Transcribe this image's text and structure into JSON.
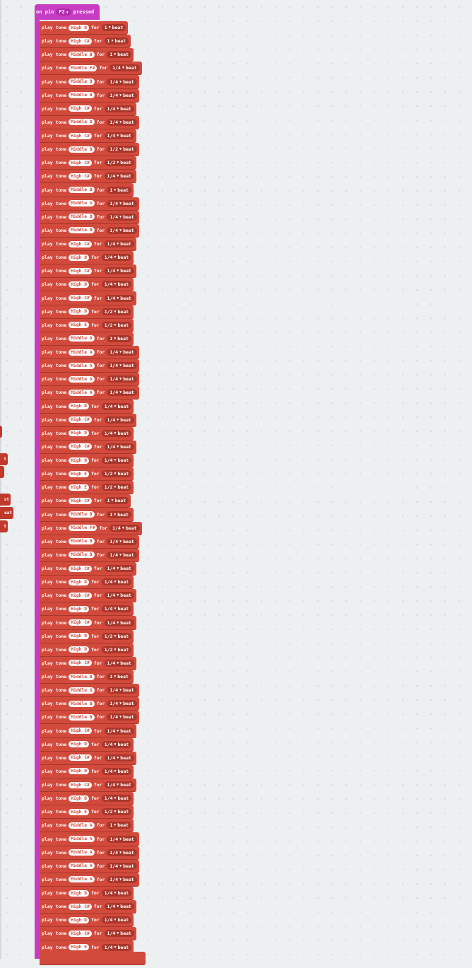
{
  "hat": {
    "prefix": "on pin",
    "pin": "P2",
    "suffix": "pressed"
  },
  "play_label": "play tone",
  "for_label": "for",
  "beat_label": "beat",
  "rows": [
    [
      "High D",
      "1"
    ],
    [
      "High C#",
      "1"
    ],
    [
      "Middle B",
      "1"
    ],
    [
      "Middle F#",
      "1/4"
    ],
    [
      "Middle B",
      "1/4"
    ],
    [
      "Middle B",
      "1/4"
    ],
    [
      "High C#",
      "1/4"
    ],
    [
      "Middle D",
      "1/4"
    ],
    [
      "High C#",
      "1/4"
    ],
    [
      "Middle B",
      "1/2"
    ],
    [
      "High C#",
      "1/2"
    ],
    [
      "High C#",
      "1/4"
    ],
    [
      "Middle B",
      "1"
    ],
    [
      "Middle G",
      "1/4"
    ],
    [
      "Middle B",
      "1/4"
    ],
    [
      "Middle B",
      "1/4"
    ],
    [
      "High C#",
      "1/4"
    ],
    [
      "High D",
      "1/4"
    ],
    [
      "High C#",
      "1/4"
    ],
    [
      "High D",
      "1/4"
    ],
    [
      "High C#",
      "1/4"
    ],
    [
      "High D",
      "1/2"
    ],
    [
      "High E",
      "1/2"
    ],
    [
      "Middle A",
      "1"
    ],
    [
      "Middle A",
      "1/4"
    ],
    [
      "Middle A",
      "1/4"
    ],
    [
      "Middle A",
      "1/4"
    ],
    [
      "Middle A",
      "1/4"
    ],
    [
      "High D",
      "1/4"
    ],
    [
      "High C#",
      "1/4"
    ],
    [
      "High D",
      "1/4"
    ],
    [
      "High C#",
      "1/4"
    ],
    [
      "High D",
      "1/4"
    ],
    [
      "High E",
      "1/2"
    ],
    [
      "High E",
      "1/2"
    ],
    [
      "High C#",
      "1"
    ],
    [
      "Middle B",
      "1"
    ],
    [
      "Middle F#",
      "1/4"
    ],
    [
      "Middle B",
      "1/4"
    ],
    [
      "Middle B",
      "1/4"
    ],
    [
      "High C#",
      "1/4"
    ],
    [
      "High D",
      "1/4"
    ],
    [
      "High C#",
      "1/4"
    ],
    [
      "High D",
      "1/4"
    ],
    [
      "High C#",
      "1/4"
    ],
    [
      "High D",
      "1/2"
    ],
    [
      "High D",
      "1/2"
    ],
    [
      "High C#",
      "1/4"
    ],
    [
      "Middle B",
      "1"
    ],
    [
      "Middle G",
      "1/4"
    ],
    [
      "Middle B",
      "1/4"
    ],
    [
      "Middle B",
      "1/4"
    ],
    [
      "High C#",
      "1/4"
    ],
    [
      "High D",
      "1/4"
    ],
    [
      "High C#",
      "1/4"
    ],
    [
      "High D",
      "1/4"
    ],
    [
      "High C#",
      "1/4"
    ],
    [
      "High D",
      "1/4"
    ],
    [
      "High E",
      "1/2"
    ],
    [
      "Middle A",
      "1"
    ],
    [
      "Middle A",
      "1/4"
    ],
    [
      "Middle A",
      "1/4"
    ],
    [
      "Middle A",
      "1/4"
    ],
    [
      "Middle A",
      "1/4"
    ],
    [
      "High D",
      "1/4"
    ],
    [
      "High C#",
      "1/4"
    ],
    [
      "High D",
      "1/4"
    ],
    [
      "High C#",
      "1/4"
    ],
    [
      "High E",
      "1/4"
    ],
    [
      "",
      ""
    ]
  ],
  "edge_texts": [
    "t",
    "t",
    "st",
    "eat",
    "t"
  ]
}
